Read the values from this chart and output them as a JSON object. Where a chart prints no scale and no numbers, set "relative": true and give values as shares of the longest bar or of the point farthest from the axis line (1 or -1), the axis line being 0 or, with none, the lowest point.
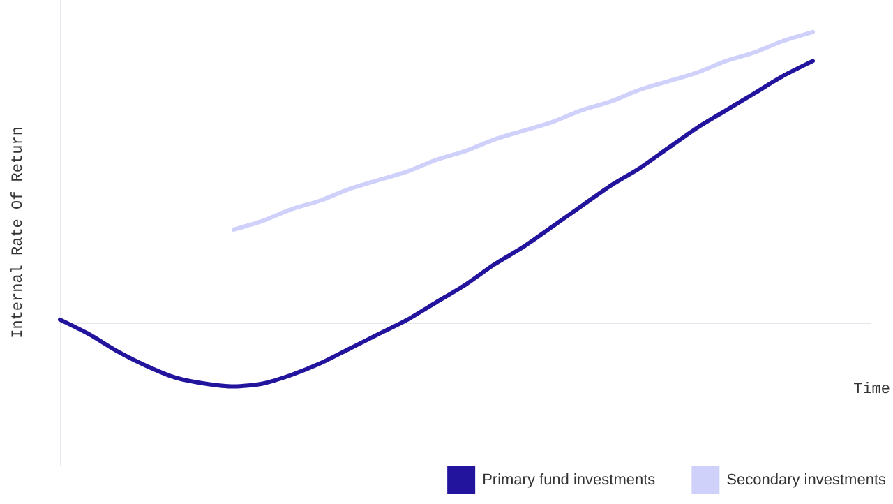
{
  "chart_data": {
    "type": "line",
    "relative": true,
    "xlabel": "Time",
    "ylabel": "Internal Rate Of Return",
    "categories": [
      null,
      null,
      null,
      null,
      null,
      null,
      null,
      null,
      null,
      null,
      null,
      null,
      null,
      null,
      null,
      null,
      null,
      null,
      null,
      null,
      null,
      null,
      null,
      null,
      null,
      null,
      null,
      null,
      null
    ],
    "series": [
      {
        "name": "Primary fund investments",
        "color": "#23149e",
        "values": [
          0.01,
          -0.04,
          -0.1,
          -0.15,
          -0.19,
          -0.21,
          -0.22,
          -0.21,
          -0.18,
          -0.14,
          -0.09,
          -0.04,
          0.01,
          0.07,
          0.13,
          0.2,
          0.26,
          0.33,
          0.4,
          0.47,
          0.53,
          0.6,
          0.67,
          0.73,
          0.79,
          0.85,
          0.9,
          null,
          null
        ]
      },
      {
        "name": "Secondary investments",
        "color": "#cfd1fa",
        "values": [
          null,
          null,
          null,
          null,
          null,
          null,
          0.32,
          0.35,
          0.39,
          0.42,
          0.46,
          0.49,
          0.52,
          0.56,
          0.59,
          0.63,
          0.66,
          0.69,
          0.73,
          0.76,
          0.8,
          0.83,
          0.86,
          0.9,
          0.93,
          0.97,
          1.0,
          null,
          null
        ]
      }
    ],
    "legend": "bottom right",
    "marker": "none",
    "line_style": "solid",
    "grid": false
  }
}
